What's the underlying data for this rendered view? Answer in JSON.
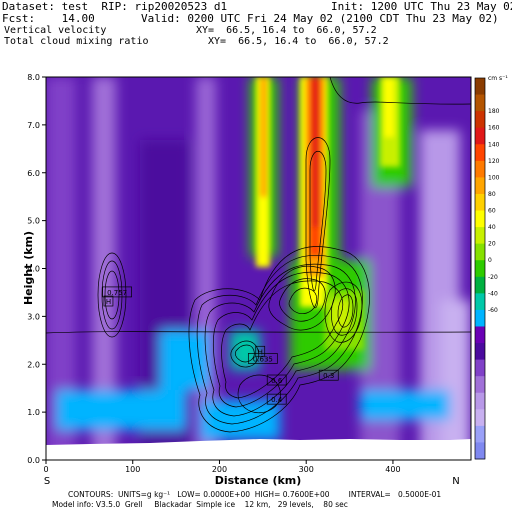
{
  "header": {
    "dataset": "Dataset: test  RIP: rip20020523 d1",
    "init": "Init: 1200 UTC Thu 23 May 02",
    "fcst": "Fcst:    14.00",
    "valid": "Valid: 0200 UTC Fri 24 May 02 (2100 CDT Thu 23 May 02)",
    "field1": "Vertical velocity",
    "xy1": "XY=  66.5, 16.4 to  66.0, 57.2",
    "field2": "Total cloud mixing ratio",
    "xy2": "XY=  66.5, 16.4 to  66.0, 57.2"
  },
  "footer": {
    "contours": "CONTOURS:  UNITS=g kg⁻¹   LOW= 0.0000E+00  HIGH= 0.7600E+00        INTERVAL=   0.5000E-01",
    "model": "Model info: V3.5.0  Grell     Blackadar  Simple ice    12 km,   29 levels,    80 sec"
  },
  "chart_data": {
    "type": "heatmap",
    "xlabel": "Distance (km)",
    "ylabel": "Height (km)",
    "xlim": [
      0,
      490
    ],
    "ylim": [
      0,
      8
    ],
    "xticks": [
      "0",
      "100",
      "200",
      "300",
      "400"
    ],
    "yticks": [
      "0.0",
      "1.0",
      "2.0",
      "3.0",
      "4.0",
      "5.0",
      "6.0",
      "7.0",
      "8.0"
    ],
    "x_ends": {
      "left": "S",
      "right": "N"
    },
    "colorbar": {
      "unit": "cm s⁻¹",
      "labels": [
        "180",
        "160",
        "140",
        "120",
        "100",
        "80",
        "60",
        "40",
        "20",
        "0",
        "-20",
        "-40",
        "-60"
      ],
      "colors": [
        "#8a3c00",
        "#b35400",
        "#cc3300",
        "#e01818",
        "#ff4400",
        "#ff7a00",
        "#ffa500",
        "#ffd000",
        "#ffff00",
        "#c8f000",
        "#86e000",
        "#2ecb00",
        "#00b040",
        "#00c8a8",
        "#00b4ff",
        "#6a00b4",
        "#4b0a9e",
        "#8040c8",
        "#a070d8",
        "#b898e8",
        "#c8b0f0",
        "#9aa0f8",
        "#7f88f0"
      ]
    },
    "contour_labels": [
      {
        "x": 72,
        "y": 3.3,
        "text": "H"
      },
      {
        "x": 82,
        "y": 3.49,
        "text": "0.757"
      },
      {
        "x": 247,
        "y": 2.25,
        "text": "H"
      },
      {
        "x": 250,
        "y": 2.1,
        "text": "0.635"
      },
      {
        "x": 266,
        "y": 1.65,
        "text": "0.6"
      },
      {
        "x": 266,
        "y": 1.25,
        "text": "0.4"
      },
      {
        "x": 326,
        "y": 1.75,
        "text": "0.3"
      }
    ]
  }
}
